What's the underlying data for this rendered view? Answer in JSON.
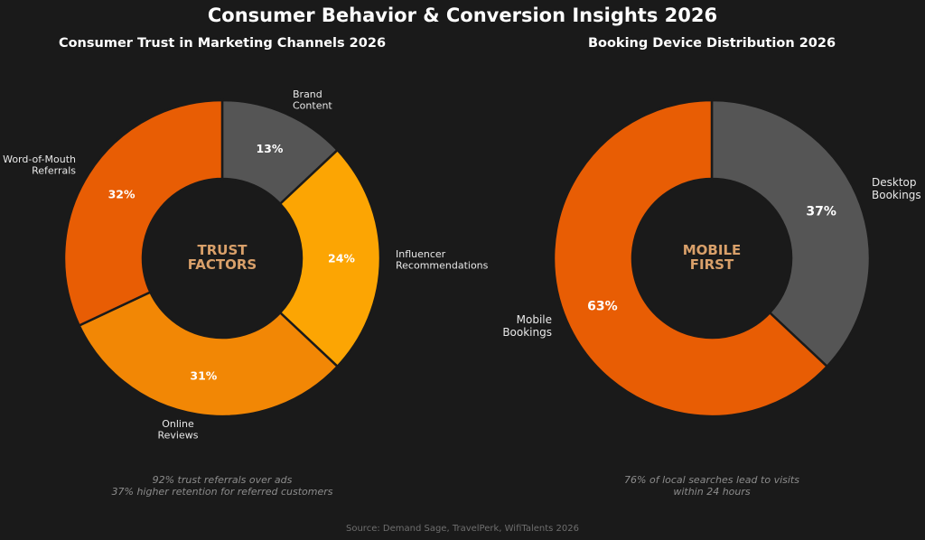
{
  "title": "Consumer Behavior & Conversion Insights 2026",
  "source": "Source: Demand Sage, TravelPerk, WifiTalents 2026",
  "chart_data": [
    {
      "type": "pie",
      "style": "donut",
      "title": "Consumer Trust in Marketing Channels 2026",
      "center_text": [
        "TRUST",
        "FACTORS"
      ],
      "slices": [
        {
          "label": [
            "Brand",
            "Content"
          ],
          "value": 13,
          "value_label": "13%",
          "color": "#555555"
        },
        {
          "label": [
            "Influencer",
            "Recommendations"
          ],
          "value": 24,
          "value_label": "24%",
          "color": "#fca503"
        },
        {
          "label": [
            "Online",
            "Reviews"
          ],
          "value": 31,
          "value_label": "31%",
          "color": "#f28705"
        },
        {
          "label": [
            "Word-of-Mouth",
            "Referrals"
          ],
          "value": 32,
          "value_label": "32%",
          "color": "#e85d04"
        }
      ],
      "notes": [
        "92% trust referrals over ads",
        "37% higher retention for referred customers"
      ]
    },
    {
      "type": "pie",
      "style": "donut",
      "title": "Booking Device Distribution 2026",
      "center_text": [
        "MOBILE",
        "FIRST"
      ],
      "slices": [
        {
          "label": [
            "Desktop",
            "Bookings"
          ],
          "value": 37,
          "value_label": "37%",
          "color": "#555555"
        },
        {
          "label": [
            "Mobile",
            "Bookings"
          ],
          "value": 63,
          "value_label": "63%",
          "color": "#e85d04"
        }
      ],
      "notes": [
        "76% of local searches lead to visits",
        "within 24 hours"
      ]
    }
  ]
}
